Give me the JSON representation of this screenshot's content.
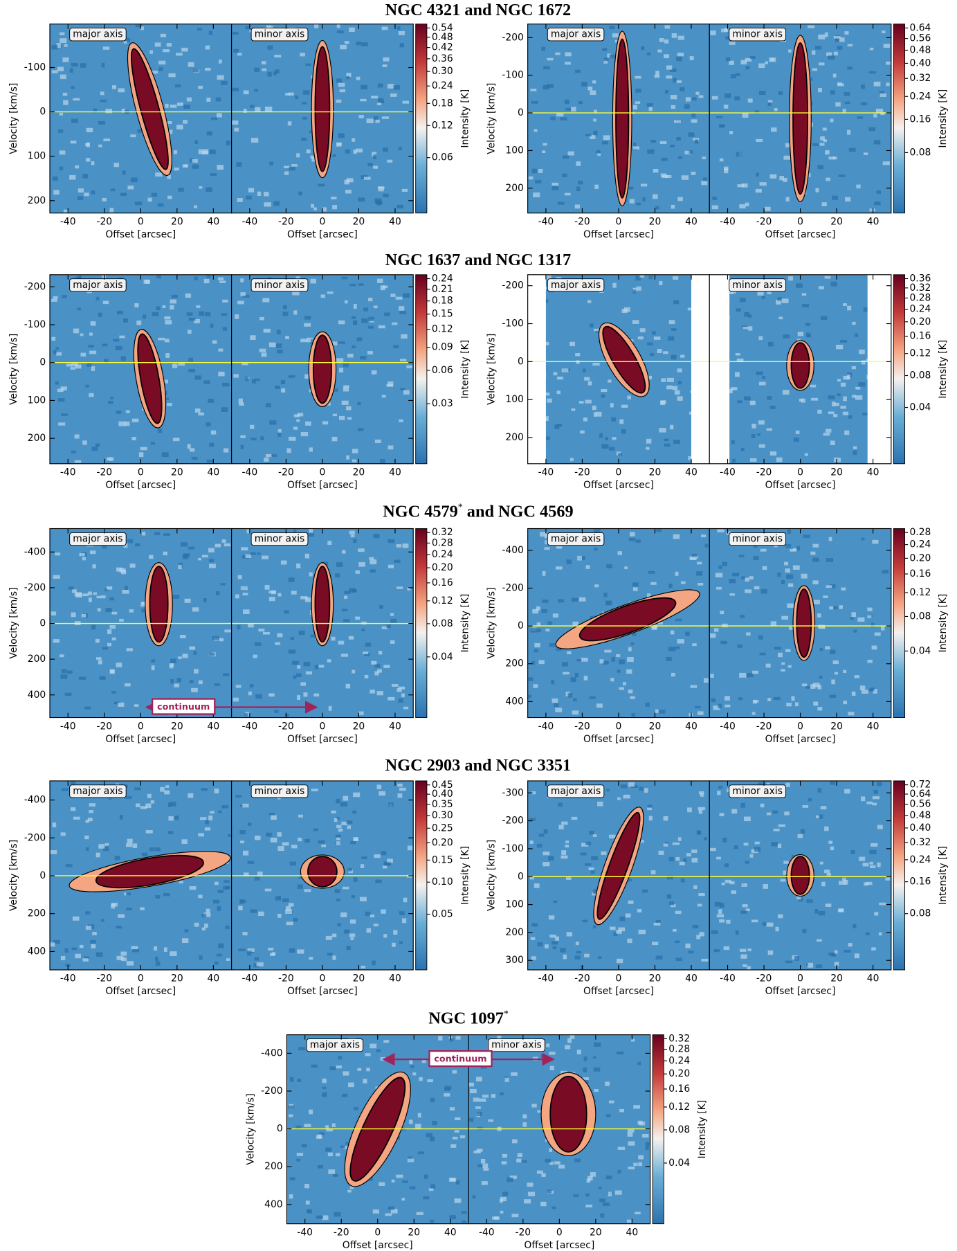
{
  "row_titles": [
    [
      {
        "text": "NGC 4321 and NGC 1672"
      }
    ],
    [
      {
        "text": "NGC 1637 and NGC 1317"
      }
    ],
    [
      {
        "text": "NGC 4579"
      },
      {
        "text": "*",
        "sup": true
      },
      {
        "text": " and NGC 4569"
      }
    ],
    [
      {
        "text": "NGC 2903 and NGC 3351"
      }
    ],
    [
      {
        "text": "NGC 1097"
      },
      {
        "text": "*",
        "sup": true
      }
    ]
  ],
  "chart_data": [
    {
      "type": "pv",
      "row": 0,
      "panel_labels": [
        "major axis",
        "minor axis"
      ],
      "xlabel": "Offset [arcsec]",
      "ylabel": "Velocity [km/s]",
      "colorbar_label": "Intensity [K]",
      "xlim": [
        -50,
        50
      ],
      "xticks": [
        -40,
        -20,
        0,
        20,
        40
      ],
      "ylim": [
        228,
        -198
      ],
      "yticks": [
        -100,
        0,
        100,
        200
      ],
      "colorbar_lim": [
        0.011,
        0.567
      ],
      "colorbar_power": 0.3,
      "colorbar_ticks": [
        0.06,
        0.12,
        0.18,
        0.24,
        {
          "value": 0.3,
          "label": "0.30"
        },
        0.36,
        0.42,
        0.48,
        0.54
      ]
    },
    {
      "type": "pv",
      "row": 0,
      "panel_labels": [
        "major axis",
        "minor axis"
      ],
      "xlabel": "Offset [arcsec]",
      "ylabel": "Velocity [km/s]",
      "colorbar_label": "Intensity [K]",
      "xlim": [
        -50,
        50
      ],
      "xticks": [
        -40,
        -20,
        0,
        20,
        40
      ],
      "ylim": [
        266,
        -236
      ],
      "yticks": [
        -200,
        -100,
        0,
        100,
        200
      ],
      "colorbar_lim": [
        0.013,
        0.672
      ],
      "colorbar_power": 0.3,
      "colorbar_ticks": [
        0.08,
        0.16,
        0.24,
        0.32,
        {
          "value": 0.4,
          "label": "0.40"
        },
        0.48,
        0.56,
        0.64
      ]
    },
    {
      "type": "pv",
      "row": 1,
      "panel_labels": [
        "major axis",
        "minor axis"
      ],
      "xlabel": "Offset [arcsec]",
      "ylabel": "Velocity [km/s]",
      "colorbar_label": "Intensity [K]",
      "xlim": [
        -50,
        50
      ],
      "xticks": [
        -40,
        -20,
        0,
        20,
        40
      ],
      "ylim": [
        267,
        -232
      ],
      "yticks": [
        -200,
        -100,
        0,
        100,
        200
      ],
      "colorbar_lim": [
        0.005,
        0.252
      ],
      "colorbar_power": 0.3,
      "colorbar_ticks": [
        0.03,
        0.06,
        0.09,
        0.12,
        0.15,
        0.18,
        0.21,
        0.24
      ]
    },
    {
      "type": "pv",
      "row": 1,
      "panel_labels": [
        "major axis",
        "minor axis"
      ],
      "xlabel": "Offset [arcsec]",
      "ylabel": "Velocity [km/s]",
      "colorbar_label": "Intensity [K]",
      "xlim": [
        -50,
        50
      ],
      "xticks": [
        -40,
        -20,
        0,
        20,
        40
      ],
      "ylim": [
        269,
        -229
      ],
      "yticks": [
        -200,
        -100,
        0,
        100,
        200
      ],
      "data_xrange": [
        [
          -40,
          40
        ],
        [
          -39,
          37
        ]
      ],
      "colorbar_lim": [
        0.007,
        0.378
      ],
      "colorbar_power": 0.3,
      "colorbar_ticks": [
        0.04,
        0.08,
        0.12,
        0.16,
        {
          "value": 0.2,
          "label": "0.20"
        },
        0.24,
        0.28,
        0.32,
        0.36
      ]
    },
    {
      "type": "pv",
      "row": 2,
      "panel_labels": [
        "major axis",
        "minor axis"
      ],
      "xlabel": "Offset [arcsec]",
      "ylabel": "Velocity [km/s]",
      "colorbar_label": "Intensity [K]",
      "annotation": "continuum",
      "xlim": [
        -50,
        50
      ],
      "xticks": [
        -40,
        -20,
        0,
        20,
        40
      ],
      "ylim": [
        527,
        -531
      ],
      "yticks": [
        -400,
        -200,
        0,
        200,
        400
      ],
      "colorbar_lim": [
        0.0064,
        0.336
      ],
      "colorbar_power": 0.3,
      "colorbar_ticks": [
        0.04,
        0.08,
        0.12,
        0.16,
        {
          "value": 0.2,
          "label": "0.20"
        },
        0.24,
        0.28,
        0.32
      ]
    },
    {
      "type": "pv",
      "row": 2,
      "panel_labels": [
        "major axis",
        "minor axis"
      ],
      "xlabel": "Offset [arcsec]",
      "ylabel": "Velocity [km/s]",
      "colorbar_label": "Intensity [K]",
      "xlim": [
        -50,
        50
      ],
      "xticks": [
        -40,
        -20,
        0,
        20,
        40
      ],
      "ylim": [
        485,
        -515
      ],
      "yticks": [
        -400,
        -200,
        0,
        200,
        400
      ],
      "colorbar_lim": [
        0.0056,
        0.294
      ],
      "colorbar_power": 0.3,
      "colorbar_ticks": [
        0.04,
        0.08,
        0.12,
        0.16,
        {
          "value": 0.2,
          "label": "0.20"
        },
        0.24,
        0.28
      ]
    },
    {
      "type": "pv",
      "row": 3,
      "panel_labels": [
        "major axis",
        "minor axis"
      ],
      "xlabel": "Offset [arcsec]",
      "ylabel": "Velocity [km/s]",
      "colorbar_label": "Intensity [K]",
      "xlim": [
        -50,
        50
      ],
      "xticks": [
        -40,
        -20,
        0,
        20,
        40
      ],
      "ylim": [
        497,
        -501
      ],
      "yticks": [
        -400,
        -200,
        0,
        200,
        400
      ],
      "colorbar_lim": [
        0.009,
        0.473
      ],
      "colorbar_power": 0.3,
      "colorbar_ticks": [
        0.05,
        {
          "value": 0.1,
          "label": "0.10"
        },
        0.15,
        {
          "value": 0.2,
          "label": "0.20"
        },
        0.25,
        {
          "value": 0.3,
          "label": "0.30"
        },
        0.35,
        {
          "value": 0.4,
          "label": "0.40"
        },
        0.45
      ]
    },
    {
      "type": "pv",
      "row": 3,
      "panel_labels": [
        "major axis",
        "minor axis"
      ],
      "xlabel": "Offset [arcsec]",
      "ylabel": "Velocity [km/s]",
      "colorbar_label": "Intensity [K]",
      "xlim": [
        -50,
        50
      ],
      "xticks": [
        -40,
        -20,
        0,
        20,
        40
      ],
      "ylim": [
        334,
        -343
      ],
      "yticks": [
        -300,
        -200,
        -100,
        0,
        100,
        200,
        300
      ],
      "colorbar_lim": [
        0.014,
        0.756
      ],
      "colorbar_power": 0.3,
      "colorbar_ticks": [
        0.08,
        0.16,
        0.24,
        0.32,
        {
          "value": 0.4,
          "label": "0.40"
        },
        0.48,
        0.56,
        0.64,
        0.72
      ]
    },
    {
      "type": "pv",
      "row": 4,
      "panel_labels": [
        "major axis",
        "minor axis"
      ],
      "xlabel": "Offset [arcsec]",
      "ylabel": "Velocity [km/s]",
      "colorbar_label": "Intensity [K]",
      "annotation": "continuum",
      "xlim": [
        -50,
        50
      ],
      "xticks": [
        -40,
        -20,
        0,
        20,
        40
      ],
      "ylim": [
        502,
        -498
      ],
      "yticks": [
        -400,
        -200,
        0,
        200,
        400
      ],
      "colorbar_lim": [
        0.0064,
        0.336
      ],
      "colorbar_power": 0.3,
      "colorbar_ticks": [
        0.04,
        0.08,
        0.12,
        0.16,
        {
          "value": 0.2,
          "label": "0.20"
        },
        0.24,
        0.28,
        0.32
      ]
    }
  ]
}
